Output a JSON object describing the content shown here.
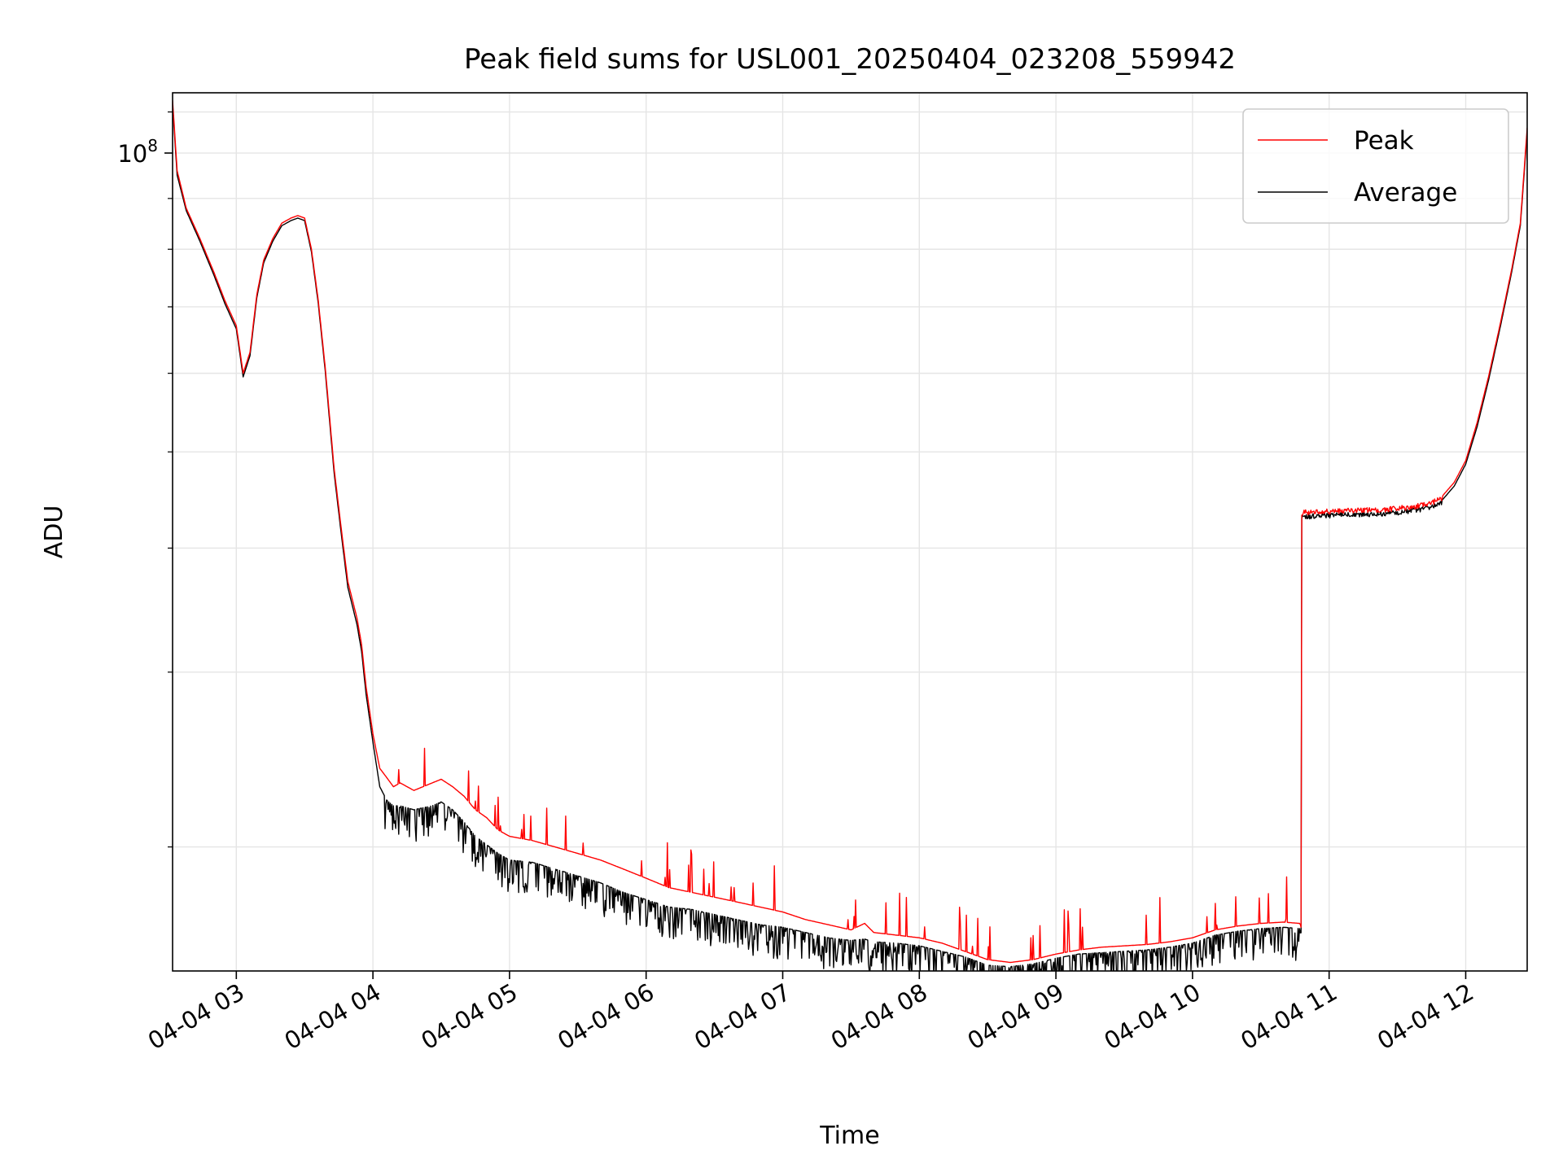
{
  "chart_data": {
    "type": "line",
    "title": "Peak field sums for USL001_20250404_023208_559942",
    "xlabel": "Time",
    "ylabel": "ADU",
    "yscale": "log",
    "grid": true,
    "legend_position": "top-right",
    "xlim": [
      "2025-04-04 02:32",
      "2025-04-04 12:27"
    ],
    "ylim": [
      15000000,
      115000000
    ],
    "x_ticks": [
      "04-04 03",
      "04-04 04",
      "04-04 05",
      "04-04 06",
      "04-04 07",
      "04-04 08",
      "04-04 09",
      "04-04 10",
      "04-04 11",
      "04-04 12"
    ],
    "y_tick_label": {
      "base": "10",
      "exp": "8",
      "value": 100000000
    },
    "colors": {
      "peak": "#ff0000",
      "average": "#000000",
      "grid": "#e5e5e5"
    },
    "series": [
      {
        "name": "Peak",
        "color": "#ff0000",
        "x": [
          "02:32",
          "02:34",
          "02:38",
          "02:44",
          "02:50",
          "02:55",
          "03:00",
          "03:03",
          "03:06",
          "03:09",
          "03:12",
          "03:16",
          "03:20",
          "03:24",
          "03:27",
          "03:30",
          "03:33",
          "03:36",
          "03:39",
          "03:43",
          "03:46",
          "03:49",
          "03:53",
          "03:55",
          "03:57",
          "04:00",
          "04:03",
          "04:06",
          "04:09",
          "04:12",
          "04:15",
          "04:18",
          "04:22",
          "04:26",
          "04:30",
          "04:35",
          "04:40",
          "04:45",
          "04:50",
          "04:55",
          "05:00",
          "05:10",
          "05:20",
          "05:30",
          "05:40",
          "05:50",
          "06:00",
          "06:10",
          "06:20",
          "06:30",
          "06:40",
          "06:50",
          "07:00",
          "07:10",
          "07:20",
          "07:30",
          "07:36",
          "07:40",
          "07:50",
          "08:00",
          "08:10",
          "08:20",
          "08:30",
          "08:40",
          "08:50",
          "09:00",
          "09:10",
          "09:20",
          "09:30",
          "09:40",
          "09:50",
          "10:00",
          "10:10",
          "10:20",
          "10:30",
          "10:40",
          "10:47",
          "10:48",
          "11:00",
          "11:10",
          "11:20",
          "11:30",
          "11:40",
          "11:45",
          "11:50",
          "11:55",
          "12:00",
          "12:05",
          "12:10",
          "12:15",
          "12:20",
          "12:24",
          "12:27"
        ],
        "y": [
          113000000,
          96000000,
          88000000,
          82000000,
          76000000,
          71000000,
          67000000,
          60000000,
          63000000,
          72000000,
          78000000,
          82000000,
          85000000,
          86000000,
          86500000,
          86000000,
          80000000,
          71000000,
          61000000,
          48000000,
          42000000,
          37000000,
          34000000,
          32000000,
          29000000,
          26000000,
          24000000,
          23500000,
          23000000,
          23200000,
          23000000,
          22800000,
          23000000,
          23200000,
          23400000,
          23000000,
          22500000,
          21800000,
          21400000,
          20800000,
          20500000,
          20300000,
          20000000,
          19700000,
          19400000,
          19000000,
          18600000,
          18200000,
          18000000,
          17800000,
          17600000,
          17400000,
          17200000,
          16900000,
          16700000,
          16500000,
          16750000,
          16400000,
          16300000,
          16200000,
          16000000,
          15700000,
          15400000,
          15300000,
          15400000,
          15600000,
          15750000,
          15850000,
          15900000,
          15950000,
          16050000,
          16200000,
          16500000,
          16650000,
          16750000,
          16800000,
          16750000,
          43700000,
          43800000,
          43900000,
          43950000,
          44100000,
          44400000,
          44700000,
          45200000,
          46600000,
          49000000,
          53500000,
          59500000,
          67000000,
          76000000,
          85000000,
          106000000
        ]
      },
      {
        "name": "Average",
        "color": "#000000",
        "x": [
          "02:32",
          "02:34",
          "02:38",
          "02:44",
          "02:50",
          "02:55",
          "03:00",
          "03:03",
          "03:06",
          "03:09",
          "03:12",
          "03:16",
          "03:20",
          "03:24",
          "03:27",
          "03:30",
          "03:33",
          "03:36",
          "03:39",
          "03:43",
          "03:46",
          "03:49",
          "03:53",
          "03:55",
          "03:57",
          "04:00",
          "04:03",
          "04:06",
          "04:09",
          "04:12",
          "04:15",
          "04:18",
          "04:22",
          "04:26",
          "04:30",
          "04:35",
          "04:40",
          "04:45",
          "04:50",
          "04:55",
          "05:00",
          "05:10",
          "05:20",
          "05:30",
          "05:40",
          "05:50",
          "06:00",
          "06:10",
          "06:20",
          "06:30",
          "06:40",
          "06:50",
          "07:00",
          "07:10",
          "07:20",
          "07:30",
          "07:36",
          "07:40",
          "07:50",
          "08:00",
          "08:10",
          "08:20",
          "08:30",
          "08:40",
          "08:50",
          "09:00",
          "09:10",
          "09:20",
          "09:30",
          "09:40",
          "09:50",
          "10:00",
          "10:10",
          "10:20",
          "10:30",
          "10:40",
          "10:47",
          "10:48",
          "11:00",
          "11:10",
          "11:20",
          "11:30",
          "11:40",
          "11:45",
          "11:50",
          "11:55",
          "12:00",
          "12:05",
          "12:10",
          "12:15",
          "12:20",
          "12:24",
          "12:27"
        ],
        "y": [
          112000000,
          95000000,
          87500000,
          81500000,
          75500000,
          70500000,
          66500000,
          59500000,
          62500000,
          71500000,
          77500000,
          81500000,
          84500000,
          85500000,
          86000000,
          85500000,
          79500000,
          70500000,
          60500000,
          47500000,
          41500000,
          36500000,
          33500000,
          31500000,
          28500000,
          25500000,
          23000000,
          22300000,
          22000000,
          22000000,
          21900000,
          21800000,
          21900000,
          22000000,
          22200000,
          21800000,
          21200000,
          20500000,
          20100000,
          19700000,
          19400000,
          19300000,
          19000000,
          18700000,
          18400000,
          18000000,
          17700000,
          17400000,
          17300000,
          17100000,
          16900000,
          16700000,
          16600000,
          16400000,
          16200000,
          16100000,
          16150000,
          16050000,
          16000000,
          15900000,
          15700000,
          15500000,
          15200000,
          15150000,
          15250000,
          15450000,
          15600000,
          15650000,
          15700000,
          15750000,
          15850000,
          16000000,
          16300000,
          16450000,
          16550000,
          16600000,
          16550000,
          43300000,
          43400000,
          43500000,
          43550000,
          43700000,
          44000000,
          44300000,
          44800000,
          46200000,
          48600000,
          53000000,
          59000000,
          66500000,
          75500000,
          84500000,
          105000000
        ]
      }
    ]
  }
}
